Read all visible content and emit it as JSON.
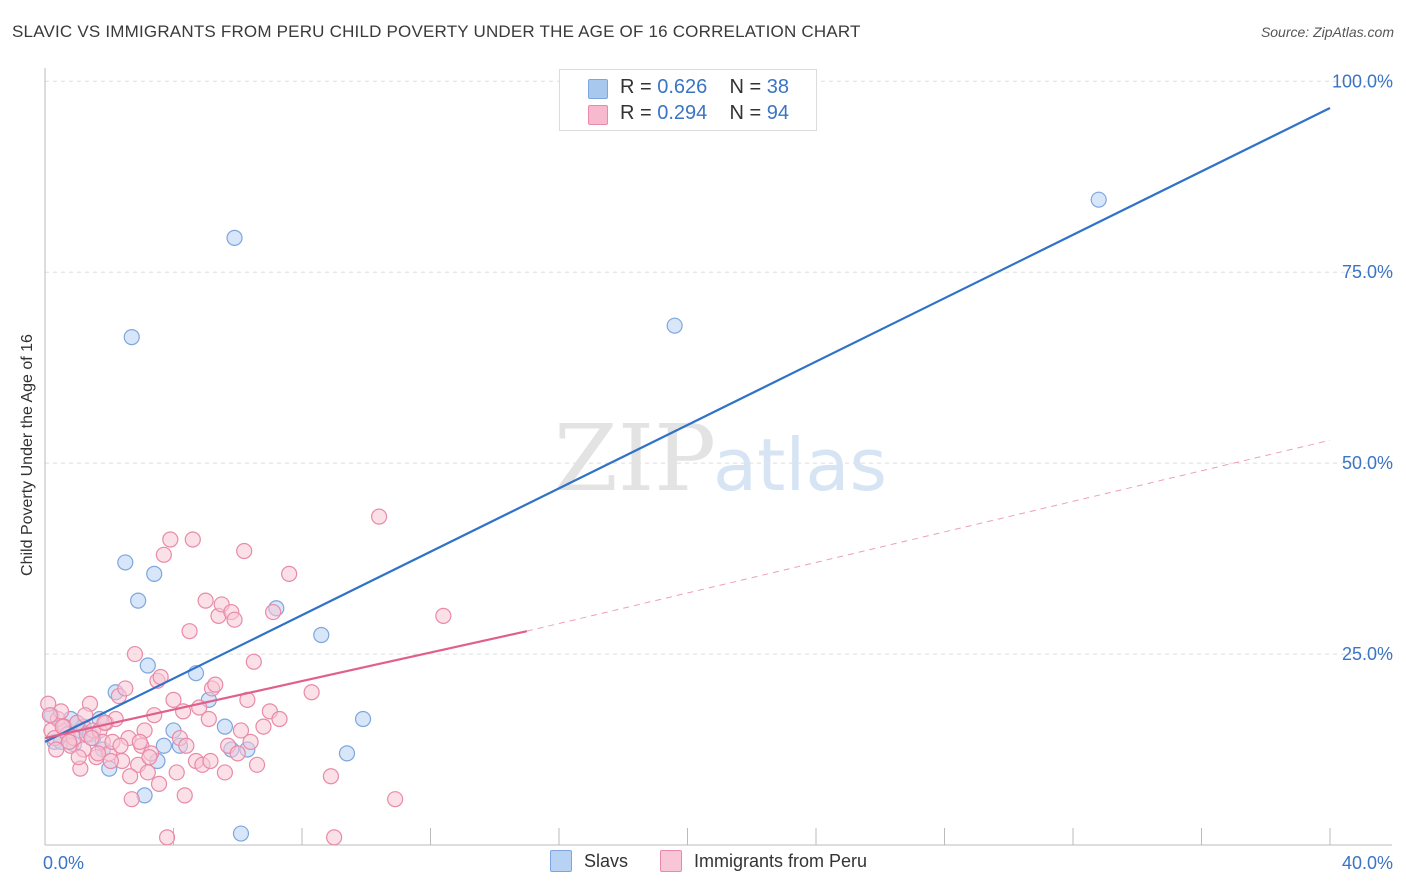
{
  "header": {
    "title": "SLAVIC VS IMMIGRANTS FROM PERU CHILD POVERTY UNDER THE AGE OF 16 CORRELATION CHART",
    "source": "Source: ZipAtlas.com"
  },
  "watermark": {
    "zip": "ZIP",
    "atlas": "atlas"
  },
  "legend": {
    "rows": [
      {
        "r_label": "R = ",
        "r_value": "0.626",
        "n_label": "N = ",
        "n_value": "38",
        "color": "#a9c8ee"
      },
      {
        "r_label": "R = ",
        "r_value": "0.294",
        "n_label": "N = ",
        "n_value": "94",
        "color": "#f6b9cd"
      }
    ]
  },
  "bottom_legend": {
    "items": [
      {
        "label": "Slavs",
        "color": "#b7d2f2",
        "border": "#7ea6de"
      },
      {
        "label": "Immigrants from Peru",
        "color": "#f8c6d6",
        "border": "#e88aa8"
      }
    ]
  },
  "chart_data": {
    "type": "scatter",
    "title": "SLAVIC VS IMMIGRANTS FROM PERU CHILD POVERTY UNDER THE AGE OF 16 CORRELATION CHART",
    "xlabel": "",
    "ylabel": "Child Poverty Under the Age of 16",
    "xlim": [
      0,
      40
    ],
    "ylim": [
      0,
      100
    ],
    "x_tick_labels": [
      {
        "value": 0,
        "label": "0.0%"
      },
      {
        "value": 40,
        "label": "40.0%"
      }
    ],
    "y_tick_labels": [
      {
        "value": 25,
        "label": "25.0%"
      },
      {
        "value": 50,
        "label": "50.0%"
      },
      {
        "value": 75,
        "label": "75.0%"
      },
      {
        "value": 100,
        "label": "100.0%"
      }
    ],
    "grid": true,
    "series": [
      {
        "name": "Slavs",
        "color": "#7ea6de",
        "fill": "#b7d2f2",
        "line_color": "#2f72c8",
        "trend": {
          "x": [
            0,
            40
          ],
          "y": [
            13.5,
            96.5
          ],
          "dashed_extension": false
        },
        "points": [
          [
            0.2,
            17.0
          ],
          [
            0.3,
            13.5
          ],
          [
            0.5,
            13.5
          ],
          [
            0.6,
            15.0
          ],
          [
            0.8,
            16.5
          ],
          [
            0.9,
            13.2
          ],
          [
            1.0,
            16.0
          ],
          [
            1.1,
            15.0
          ],
          [
            1.2,
            15.5
          ],
          [
            1.4,
            14.5
          ],
          [
            1.5,
            14.0
          ],
          [
            1.7,
            16.5
          ],
          [
            1.8,
            12.5
          ],
          [
            2.0,
            10.0
          ],
          [
            2.2,
            20.0
          ],
          [
            2.5,
            37.0
          ],
          [
            2.7,
            66.5
          ],
          [
            2.9,
            32.0
          ],
          [
            3.1,
            6.5
          ],
          [
            3.2,
            23.5
          ],
          [
            3.4,
            35.5
          ],
          [
            3.5,
            11.0
          ],
          [
            3.7,
            13.0
          ],
          [
            4.0,
            15.0
          ],
          [
            4.2,
            13.0
          ],
          [
            4.7,
            22.5
          ],
          [
            5.1,
            19.0
          ],
          [
            5.6,
            15.5
          ],
          [
            5.8,
            12.5
          ],
          [
            5.9,
            79.5
          ],
          [
            6.3,
            12.5
          ],
          [
            6.1,
            1.5
          ],
          [
            7.2,
            31.0
          ],
          [
            8.6,
            27.5
          ],
          [
            9.4,
            12.0
          ],
          [
            9.9,
            16.5
          ],
          [
            19.6,
            68.0
          ],
          [
            32.8,
            84.5
          ]
        ]
      },
      {
        "name": "Immigrants from Peru",
        "color": "#e88aa8",
        "fill": "#f8c6d6",
        "line_color": "#e0608b",
        "trend": {
          "x": [
            0,
            15
          ],
          "y": [
            14.0,
            28.0
          ],
          "dashed_extension": {
            "x": [
              15,
              40
            ],
            "y": [
              28.0,
              53.0
            ]
          }
        },
        "points": [
          [
            0.1,
            18.5
          ],
          [
            0.2,
            15.0
          ],
          [
            0.3,
            14.0
          ],
          [
            0.4,
            16.5
          ],
          [
            0.5,
            17.5
          ],
          [
            0.6,
            15.5
          ],
          [
            0.7,
            14.5
          ],
          [
            0.8,
            13.0
          ],
          [
            0.9,
            14.0
          ],
          [
            1.0,
            16.0
          ],
          [
            1.1,
            10.0
          ],
          [
            1.2,
            12.5
          ],
          [
            1.3,
            14.5
          ],
          [
            1.4,
            18.5
          ],
          [
            1.5,
            15.0
          ],
          [
            1.6,
            11.5
          ],
          [
            1.7,
            15.0
          ],
          [
            1.8,
            13.5
          ],
          [
            1.9,
            16.0
          ],
          [
            2.0,
            12.0
          ],
          [
            2.1,
            13.5
          ],
          [
            2.2,
            16.5
          ],
          [
            2.3,
            19.5
          ],
          [
            2.4,
            11.0
          ],
          [
            2.5,
            20.5
          ],
          [
            2.6,
            14.0
          ],
          [
            2.7,
            6.0
          ],
          [
            2.8,
            25.0
          ],
          [
            2.9,
            10.5
          ],
          [
            3.0,
            13.0
          ],
          [
            3.1,
            15.0
          ],
          [
            3.2,
            9.5
          ],
          [
            3.3,
            12.0
          ],
          [
            3.4,
            17.0
          ],
          [
            3.5,
            21.5
          ],
          [
            3.6,
            22.0
          ],
          [
            3.7,
            38.0
          ],
          [
            3.8,
            1.0
          ],
          [
            3.9,
            40.0
          ],
          [
            4.0,
            19.0
          ],
          [
            4.1,
            9.5
          ],
          [
            4.2,
            14.0
          ],
          [
            4.3,
            17.5
          ],
          [
            4.4,
            13.0
          ],
          [
            4.5,
            28.0
          ],
          [
            4.6,
            40.0
          ],
          [
            4.7,
            11.0
          ],
          [
            4.8,
            18.0
          ],
          [
            4.9,
            10.5
          ],
          [
            5.0,
            32.0
          ],
          [
            5.1,
            16.5
          ],
          [
            5.2,
            20.5
          ],
          [
            5.3,
            21.0
          ],
          [
            5.4,
            30.0
          ],
          [
            5.5,
            31.5
          ],
          [
            5.6,
            9.5
          ],
          [
            5.7,
            13.0
          ],
          [
            5.8,
            30.5
          ],
          [
            5.9,
            29.5
          ],
          [
            6.0,
            12.0
          ],
          [
            6.1,
            15.0
          ],
          [
            6.2,
            38.5
          ],
          [
            6.3,
            19.0
          ],
          [
            6.4,
            13.5
          ],
          [
            6.5,
            24.0
          ],
          [
            6.6,
            10.5
          ],
          [
            6.8,
            15.5
          ],
          [
            7.0,
            17.5
          ],
          [
            7.1,
            30.5
          ],
          [
            7.3,
            16.5
          ],
          [
            7.6,
            35.5
          ],
          [
            8.3,
            20.0
          ],
          [
            8.9,
            9.0
          ],
          [
            9.0,
            1.0
          ],
          [
            10.4,
            43.0
          ],
          [
            10.9,
            6.0
          ],
          [
            12.4,
            30.0
          ],
          [
            0.15,
            17.0
          ],
          [
            0.35,
            12.5
          ],
          [
            0.55,
            15.5
          ],
          [
            0.75,
            13.5
          ],
          [
            1.05,
            11.5
          ],
          [
            1.25,
            17.0
          ],
          [
            1.45,
            14.0
          ],
          [
            1.65,
            12.0
          ],
          [
            1.85,
            16.0
          ],
          [
            2.05,
            11.0
          ],
          [
            2.35,
            13.0
          ],
          [
            2.65,
            9.0
          ],
          [
            2.95,
            13.5
          ],
          [
            3.25,
            11.5
          ],
          [
            3.55,
            8.0
          ],
          [
            4.35,
            6.5
          ],
          [
            5.15,
            11.0
          ]
        ]
      }
    ]
  }
}
